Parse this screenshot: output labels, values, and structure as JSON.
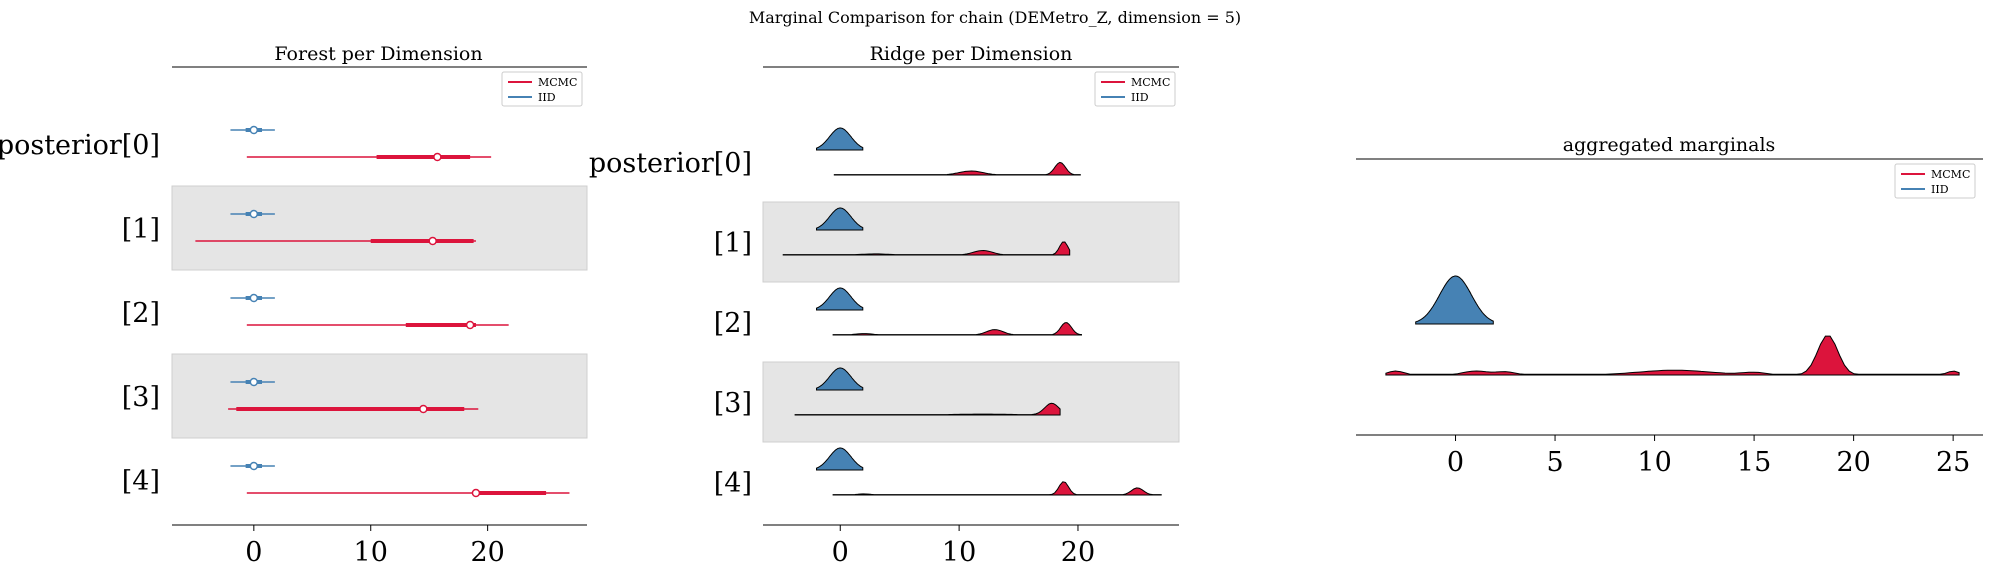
{
  "suptitle": "Marginal Comparison for chain (DEMetro_Z, dimension = 5)",
  "legend_labels": [
    "MCMC",
    "IID"
  ],
  "colors": {
    "mcmc": "#dc143c",
    "iid": "#4682b4",
    "band": "#e5e5e5"
  },
  "chart_data": [
    {
      "type": "forest",
      "title": "Forest per Dimension",
      "legend_position": "top-right",
      "xlim": [
        -7,
        28.5
      ],
      "xticks": [
        0,
        10,
        20
      ],
      "ylabels": [
        "posterior[0]",
        "[1]",
        "[2]",
        "[3]",
        "[4]"
      ],
      "series": [
        {
          "name": "MCMC",
          "hdi94": [
            [
              -0.6,
              20.3
            ],
            [
              -5.0,
              19.0
            ],
            [
              -0.6,
              21.8
            ],
            [
              -2.2,
              19.2
            ],
            [
              -0.6,
              27.0
            ]
          ],
          "hdi50": [
            [
              10.5,
              18.5
            ],
            [
              10.0,
              18.8
            ],
            [
              13.0,
              19.0
            ],
            [
              -1.5,
              18.0
            ],
            [
              19.0,
              25.0
            ]
          ],
          "median": [
            15.7,
            15.3
          ],
          "median_rest": [
            18.5,
            14.5,
            19.0
          ]
        },
        {
          "name": "IID",
          "hdi94": [
            [
              -2.0,
              1.8
            ],
            [
              -2.0,
              1.8
            ],
            [
              -2.0,
              1.8
            ],
            [
              -2.0,
              1.8
            ],
            [
              -2.0,
              1.8
            ]
          ],
          "hdi50": [
            [
              -0.7,
              0.7
            ],
            [
              -0.7,
              0.7
            ],
            [
              -0.7,
              0.7
            ],
            [
              -0.7,
              0.7
            ],
            [
              -0.7,
              0.7
            ]
          ],
          "median": [
            0,
            0,
            0,
            0,
            0
          ]
        }
      ]
    },
    {
      "type": "ridge",
      "title": "Ridge per Dimension",
      "legend_position": "top-right",
      "xlim": [
        -6.5,
        28.5
      ],
      "xticks": [
        0,
        10,
        20
      ],
      "ylabels": [
        "posterior[0]",
        "[1]",
        "[2]",
        "[3]",
        "[4]"
      ],
      "series": [
        {
          "name": "MCMC",
          "ranges": [
            [
              -0.5,
              20.2
            ],
            [
              -4.8,
              19.3
            ],
            [
              -0.6,
              20.3
            ],
            [
              -3.8,
              18.5
            ],
            [
              -0.6,
              27.0
            ]
          ],
          "peaks": [
            [
              [
                11.0,
                1.0,
                0.22
              ],
              [
                18.5,
                0.45,
                0.7
              ]
            ],
            [
              [
                3.0,
                1.2,
                0.06
              ],
              [
                12.0,
                0.8,
                0.25
              ],
              [
                18.8,
                0.35,
                0.75
              ]
            ],
            [
              [
                2.0,
                0.7,
                0.08
              ],
              [
                13.0,
                0.7,
                0.3
              ],
              [
                19.0,
                0.45,
                0.7
              ]
            ],
            [
              [
                12.0,
                2.5,
                0.05
              ],
              [
                17.8,
                0.6,
                0.65
              ]
            ],
            [
              [
                2.0,
                0.6,
                0.06
              ],
              [
                18.8,
                0.4,
                0.75
              ],
              [
                25.0,
                0.5,
                0.4
              ]
            ]
          ]
        },
        {
          "name": "IID",
          "ranges": [
            [
              -2.0,
              1.9
            ],
            [
              -2.0,
              1.9
            ],
            [
              -2.0,
              1.9
            ],
            [
              -2.0,
              1.9
            ],
            [
              -2.0,
              1.9
            ]
          ],
          "peaks": [
            [
              [
                0,
                0.9,
                1.0
              ]
            ],
            [
              [
                0,
                0.9,
                1.0
              ]
            ],
            [
              [
                0,
                0.9,
                1.0
              ]
            ],
            [
              [
                0,
                0.9,
                1.0
              ]
            ],
            [
              [
                0,
                0.9,
                1.0
              ]
            ]
          ]
        }
      ]
    },
    {
      "type": "ridge",
      "title": "aggregated marginals",
      "legend_position": "top-right",
      "xlim": [
        -5,
        26.5
      ],
      "xticks": [
        0,
        5,
        10,
        15,
        20,
        25
      ],
      "series": [
        {
          "name": "MCMC",
          "range": [
            -3.5,
            25.3
          ],
          "peaks": [
            [
              -3.0,
              0.4,
              0.1
            ],
            [
              1.0,
              0.6,
              0.1
            ],
            [
              2.5,
              0.5,
              0.08
            ],
            [
              11.0,
              1.8,
              0.12
            ],
            [
              15.0,
              0.6,
              0.06
            ],
            [
              18.7,
              0.5,
              1.0
            ],
            [
              25.0,
              0.3,
              0.1
            ]
          ]
        },
        {
          "name": "IID",
          "range": [
            -2.0,
            1.9
          ],
          "peaks": [
            [
              0,
              0.8,
              1.0
            ]
          ]
        }
      ]
    }
  ]
}
